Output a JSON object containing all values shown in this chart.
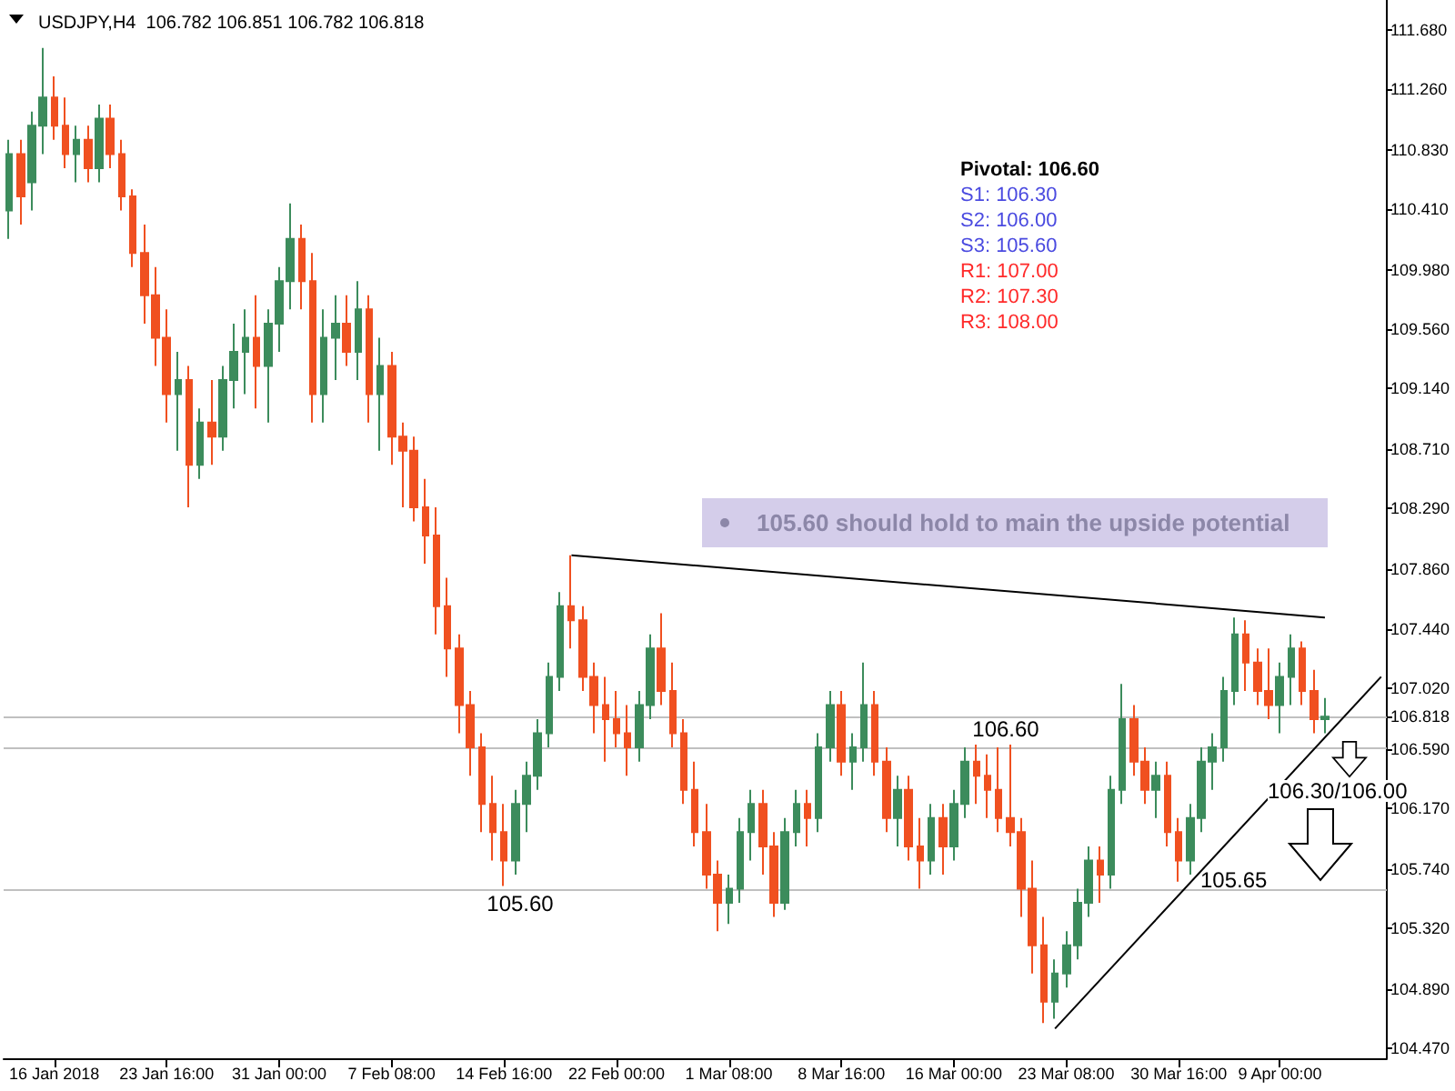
{
  "chart_data": {
    "type": "candlestick",
    "title": "USDJPY,H4  106.782 106.851 106.782 106.818",
    "categories": [
      null,
      null,
      null,
      null,
      "16 Jan 2018",
      null,
      null,
      null,
      null,
      null,
      null,
      null,
      null,
      null,
      "23 Jan 16:00",
      null,
      null,
      null,
      null,
      null,
      null,
      null,
      null,
      null,
      "31 Jan 00:00",
      null,
      null,
      null,
      null,
      null,
      null,
      null,
      null,
      null,
      "7 Feb 08:00",
      null,
      null,
      null,
      null,
      null,
      null,
      null,
      null,
      null,
      "14 Feb 16:00",
      null,
      null,
      null,
      null,
      null,
      null,
      null,
      null,
      null,
      "22 Feb 00:00",
      null,
      null,
      null,
      null,
      null,
      null,
      null,
      null,
      null,
      "1 Mar 08:00",
      null,
      null,
      null,
      null,
      null,
      null,
      null,
      null,
      null,
      "8 Mar 16:00",
      null,
      null,
      null,
      null,
      null,
      null,
      null,
      null,
      null,
      "16 Mar 00:00",
      null,
      null,
      null,
      null,
      null,
      null,
      null,
      null,
      null,
      "23 Mar 08:00",
      null,
      null,
      null,
      null,
      null,
      null,
      null,
      null,
      null,
      "30 Mar 16:00",
      null,
      null,
      null,
      null,
      null,
      null,
      null,
      null,
      "9 Apr 00:00",
      null,
      null,
      null,
      null,
      null,
      null,
      null,
      null,
      null
    ],
    "ohlc": [
      [
        110.4,
        110.9,
        110.2,
        110.8
      ],
      [
        110.8,
        110.9,
        110.3,
        110.5
      ],
      [
        110.6,
        111.1,
        110.4,
        111.0
      ],
      [
        111.0,
        111.55,
        110.8,
        111.2
      ],
      [
        111.2,
        111.35,
        110.9,
        111.0
      ],
      [
        111.0,
        111.2,
        110.7,
        110.8
      ],
      [
        110.8,
        111.0,
        110.6,
        110.9
      ],
      [
        110.9,
        111.0,
        110.6,
        110.7
      ],
      [
        110.7,
        111.15,
        110.6,
        111.05
      ],
      [
        111.05,
        111.15,
        110.7,
        110.8
      ],
      [
        110.8,
        110.9,
        110.4,
        110.5
      ],
      [
        110.5,
        110.55,
        110.0,
        110.1
      ],
      [
        110.1,
        110.3,
        109.6,
        109.8
      ],
      [
        109.8,
        110.0,
        109.3,
        109.5
      ],
      [
        109.5,
        109.7,
        108.9,
        109.1
      ],
      [
        109.1,
        109.4,
        108.7,
        109.2
      ],
      [
        109.2,
        109.3,
        108.3,
        108.6
      ],
      [
        108.6,
        109.0,
        108.5,
        108.9
      ],
      [
        108.9,
        109.2,
        108.6,
        108.8
      ],
      [
        108.8,
        109.3,
        108.7,
        109.2
      ],
      [
        109.2,
        109.6,
        109.0,
        109.4
      ],
      [
        109.4,
        109.7,
        109.1,
        109.5
      ],
      [
        109.5,
        109.8,
        109.0,
        109.3
      ],
      [
        109.3,
        109.7,
        108.9,
        109.6
      ],
      [
        109.6,
        110.0,
        109.4,
        109.9
      ],
      [
        109.9,
        110.45,
        109.7,
        110.2
      ],
      [
        110.2,
        110.3,
        109.7,
        109.9
      ],
      [
        109.9,
        110.1,
        108.9,
        109.1
      ],
      [
        109.1,
        109.7,
        108.9,
        109.5
      ],
      [
        109.5,
        109.8,
        109.2,
        109.6
      ],
      [
        109.6,
        109.8,
        109.3,
        109.4
      ],
      [
        109.4,
        109.9,
        109.2,
        109.7
      ],
      [
        109.7,
        109.8,
        108.9,
        109.1
      ],
      [
        109.1,
        109.5,
        108.7,
        109.3
      ],
      [
        109.3,
        109.4,
        108.6,
        108.8
      ],
      [
        108.8,
        108.9,
        108.3,
        108.7
      ],
      [
        108.7,
        108.8,
        108.2,
        108.3
      ],
      [
        108.3,
        108.5,
        107.9,
        108.1
      ],
      [
        108.1,
        108.3,
        107.4,
        107.6
      ],
      [
        107.6,
        107.8,
        107.1,
        107.3
      ],
      [
        107.3,
        107.4,
        106.7,
        106.9
      ],
      [
        106.9,
        107.0,
        106.4,
        106.6
      ],
      [
        106.6,
        106.7,
        106.0,
        106.2
      ],
      [
        106.2,
        106.4,
        105.8,
        106.0
      ],
      [
        106.0,
        106.2,
        105.62,
        105.8
      ],
      [
        105.8,
        106.3,
        105.7,
        106.2
      ],
      [
        106.2,
        106.5,
        106.0,
        106.4
      ],
      [
        106.4,
        106.8,
        106.3,
        106.7
      ],
      [
        106.7,
        107.2,
        106.6,
        107.1
      ],
      [
        107.1,
        107.7,
        107.0,
        107.6
      ],
      [
        107.6,
        107.96,
        107.3,
        107.5
      ],
      [
        107.5,
        107.6,
        107.0,
        107.1
      ],
      [
        107.1,
        107.2,
        106.7,
        106.9
      ],
      [
        106.9,
        107.1,
        106.5,
        106.8
      ],
      [
        106.8,
        107.0,
        106.6,
        106.7
      ],
      [
        106.7,
        106.9,
        106.4,
        106.6
      ],
      [
        106.6,
        107.0,
        106.5,
        106.9
      ],
      [
        106.9,
        107.4,
        106.8,
        107.3
      ],
      [
        107.3,
        107.55,
        106.9,
        107.0
      ],
      [
        107.0,
        107.2,
        106.6,
        106.7
      ],
      [
        106.7,
        106.8,
        106.2,
        106.3
      ],
      [
        106.3,
        106.5,
        105.9,
        106.0
      ],
      [
        106.0,
        106.2,
        105.6,
        105.7
      ],
      [
        105.7,
        105.8,
        105.3,
        105.5
      ],
      [
        105.5,
        105.7,
        105.35,
        105.6
      ],
      [
        105.6,
        106.1,
        105.5,
        106.0
      ],
      [
        106.0,
        106.3,
        105.8,
        106.2
      ],
      [
        106.2,
        106.3,
        105.7,
        105.9
      ],
      [
        105.9,
        106.0,
        105.4,
        105.5
      ],
      [
        105.5,
        106.1,
        105.45,
        106.0
      ],
      [
        106.0,
        106.3,
        105.9,
        106.2
      ],
      [
        106.2,
        106.3,
        105.9,
        106.1
      ],
      [
        106.1,
        106.7,
        106.0,
        106.6
      ],
      [
        106.6,
        107.0,
        106.5,
        106.9
      ],
      [
        106.9,
        107.0,
        106.4,
        106.5
      ],
      [
        106.5,
        106.7,
        106.3,
        106.6
      ],
      [
        106.6,
        107.2,
        106.5,
        106.9
      ],
      [
        106.9,
        107.0,
        106.4,
        106.5
      ],
      [
        106.5,
        106.6,
        106.0,
        106.1
      ],
      [
        106.1,
        106.4,
        105.9,
        106.3
      ],
      [
        106.3,
        106.4,
        105.8,
        105.9
      ],
      [
        105.9,
        106.1,
        105.6,
        105.8
      ],
      [
        105.8,
        106.2,
        105.7,
        106.1
      ],
      [
        106.1,
        106.2,
        105.7,
        105.9
      ],
      [
        105.9,
        106.3,
        105.8,
        106.2
      ],
      [
        106.2,
        106.6,
        106.1,
        106.5
      ],
      [
        106.5,
        106.62,
        106.2,
        106.4
      ],
      [
        106.4,
        106.55,
        106.1,
        106.3
      ],
      [
        106.3,
        106.6,
        106.0,
        106.1
      ],
      [
        106.1,
        106.62,
        105.9,
        106.0
      ],
      [
        106.0,
        106.1,
        105.4,
        105.6
      ],
      [
        105.6,
        105.8,
        105.0,
        105.2
      ],
      [
        105.2,
        105.4,
        104.65,
        104.8
      ],
      [
        104.8,
        105.1,
        104.68,
        105.0
      ],
      [
        105.0,
        105.3,
        104.9,
        105.2
      ],
      [
        105.2,
        105.6,
        105.1,
        105.5
      ],
      [
        105.5,
        105.9,
        105.4,
        105.8
      ],
      [
        105.8,
        105.9,
        105.5,
        105.7
      ],
      [
        105.7,
        106.4,
        105.6,
        106.3
      ],
      [
        106.3,
        107.05,
        106.2,
        106.8
      ],
      [
        106.8,
        106.9,
        106.4,
        106.5
      ],
      [
        106.5,
        106.6,
        106.2,
        106.3
      ],
      [
        106.3,
        106.5,
        106.1,
        106.4
      ],
      [
        106.4,
        106.5,
        105.9,
        106.0
      ],
      [
        106.0,
        106.1,
        105.65,
        105.8
      ],
      [
        105.8,
        106.2,
        105.7,
        106.1
      ],
      [
        106.1,
        106.6,
        106.0,
        106.5
      ],
      [
        106.5,
        106.7,
        106.3,
        106.6
      ],
      [
        106.6,
        107.1,
        106.5,
        107.0
      ],
      [
        107.0,
        107.52,
        106.9,
        107.4
      ],
      [
        107.4,
        107.5,
        107.0,
        107.2
      ],
      [
        107.2,
        107.3,
        106.9,
        107.0
      ],
      [
        107.0,
        107.3,
        106.8,
        106.9
      ],
      [
        106.9,
        107.2,
        106.7,
        107.1
      ],
      [
        107.1,
        107.4,
        106.9,
        107.3
      ],
      [
        107.3,
        107.35,
        106.9,
        107.0
      ],
      [
        107.0,
        107.15,
        106.7,
        106.8
      ],
      [
        106.8,
        106.95,
        106.7,
        106.818
      ],
      null,
      null,
      null,
      null,
      null
    ],
    "colors": [
      "#3c8c5c",
      "#f05020",
      "#3c8c5c",
      "#3c8c5c",
      "#f05020",
      "#f05020",
      "#3c8c5c",
      "#f05020",
      "#3c8c5c",
      "#f05020",
      "#f05020",
      "#f05020",
      "#f05020",
      "#f05020",
      "#f05020",
      "#3c8c5c",
      "#f05020",
      "#3c8c5c",
      "#f05020",
      "#3c8c5c",
      "#3c8c5c",
      "#3c8c5c",
      "#f05020",
      "#3c8c5c",
      "#3c8c5c",
      "#3c8c5c",
      "#f05020",
      "#f05020",
      "#3c8c5c",
      "#3c8c5c",
      "#f05020",
      "#3c8c5c",
      "#f05020",
      "#3c8c5c",
      "#f05020",
      "#f05020",
      "#f05020",
      "#f05020",
      "#f05020",
      "#f05020",
      "#f05020",
      "#f05020",
      "#f05020",
      "#f05020",
      "#f05020",
      "#3c8c5c",
      "#3c8c5c",
      "#3c8c5c",
      "#3c8c5c",
      "#3c8c5c",
      "#f05020",
      "#f05020",
      "#f05020",
      "#f05020",
      "#f05020",
      "#f05020",
      "#3c8c5c",
      "#3c8c5c",
      "#f05020",
      "#f05020",
      "#f05020",
      "#f05020",
      "#f05020",
      "#f05020",
      "#3c8c5c",
      "#3c8c5c",
      "#3c8c5c",
      "#f05020",
      "#f05020",
      "#3c8c5c",
      "#3c8c5c",
      "#f05020",
      "#3c8c5c",
      "#3c8c5c",
      "#f05020",
      "#3c8c5c",
      "#3c8c5c",
      "#f05020",
      "#f05020",
      "#3c8c5c",
      "#f05020",
      "#f05020",
      "#3c8c5c",
      "#f05020",
      "#3c8c5c",
      "#3c8c5c",
      "#f05020",
      "#f05020",
      "#f05020",
      "#f05020",
      "#f05020",
      "#f05020",
      "#f05020",
      "#3c8c5c",
      "#3c8c5c",
      "#3c8c5c",
      "#3c8c5c",
      "#f05020",
      "#3c8c5c",
      "#3c8c5c",
      "#f05020",
      "#f05020",
      "#3c8c5c",
      "#f05020",
      "#f05020",
      "#3c8c5c",
      "#3c8c5c",
      "#3c8c5c",
      "#3c8c5c",
      "#3c8c5c",
      "#f05020",
      "#f05020",
      "#f05020",
      "#3c8c5c",
      "#3c8c5c",
      "#f05020",
      "#f05020",
      "#3c8c5c",
      null,
      null,
      null,
      null,
      null
    ],
    "series": [
      {
        "type": "line",
        "color": "#000000",
        "values": [
          null,
          null,
          null,
          null,
          null,
          null,
          null,
          null,
          null,
          null,
          null,
          null,
          null,
          null,
          null,
          null,
          null,
          null,
          null,
          null,
          null,
          null,
          null,
          null,
          null,
          null,
          null,
          null,
          null,
          null,
          null,
          null,
          null,
          null,
          null,
          null,
          null,
          null,
          null,
          null,
          null,
          null,
          null,
          null,
          null,
          null,
          null,
          null,
          null,
          null,
          107.96,
          null,
          null,
          null,
          null,
          null,
          null,
          null,
          null,
          null,
          null,
          null,
          null,
          null,
          null,
          null,
          null,
          null,
          null,
          null,
          null,
          null,
          null,
          null,
          null,
          null,
          null,
          null,
          null,
          null,
          null,
          null,
          null,
          null,
          null,
          null,
          null,
          null,
          null,
          null,
          null,
          null,
          null,
          null,
          null,
          null,
          null,
          null,
          null,
          null,
          null,
          null,
          null,
          null,
          null,
          null,
          null,
          null,
          null,
          null,
          null,
          null,
          null,
          null,
          null,
          null,
          null,
          107.52,
          null,
          null,
          null,
          null,
          null
        ]
      },
      {
        "type": "line",
        "color": "#000000",
        "values": [
          null,
          null,
          null,
          null,
          null,
          null,
          null,
          null,
          null,
          null,
          null,
          null,
          null,
          null,
          null,
          null,
          null,
          null,
          null,
          null,
          null,
          null,
          null,
          null,
          null,
          null,
          null,
          null,
          null,
          null,
          null,
          null,
          null,
          null,
          null,
          null,
          null,
          null,
          null,
          null,
          null,
          null,
          null,
          null,
          null,
          null,
          null,
          null,
          null,
          null,
          null,
          null,
          null,
          null,
          null,
          null,
          null,
          null,
          null,
          null,
          null,
          null,
          null,
          null,
          null,
          null,
          null,
          null,
          null,
          null,
          null,
          null,
          null,
          null,
          null,
          null,
          null,
          null,
          null,
          null,
          null,
          null,
          null,
          null,
          null,
          null,
          null,
          null,
          null,
          null,
          null,
          null,
          null,
          104.61,
          null,
          null,
          null,
          null,
          null,
          null,
          null,
          null,
          null,
          null,
          null,
          null,
          null,
          null,
          null,
          null,
          null,
          null,
          null,
          null,
          null,
          null,
          null,
          null,
          null,
          null,
          null,
          null,
          107.1
        ]
      }
    ],
    "marker": "none",
    "ylim": [
      104.4,
      111.89
    ],
    "yticks": [
      {
        "value": 104.47,
        "label": "104.470"
      },
      {
        "value": 104.89,
        "label": "104.890"
      },
      {
        "value": 105.32,
        "label": "105.320"
      },
      {
        "value": 105.74,
        "label": "105.740"
      },
      {
        "value": 106.17,
        "label": "106.170"
      },
      {
        "value": 106.59,
        "label": "106.590"
      },
      {
        "value": 106.818,
        "label": "106.818"
      },
      {
        "value": 107.02,
        "label": "107.020"
      },
      {
        "value": 107.44,
        "label": "107.440"
      },
      {
        "value": 107.86,
        "label": "107.860"
      },
      {
        "value": 108.29,
        "label": "108.290"
      },
      {
        "value": 108.71,
        "label": "108.710"
      },
      {
        "value": 109.14,
        "label": "109.140"
      },
      {
        "value": 109.56,
        "label": "109.560"
      },
      {
        "value": 109.98,
        "label": "109.980"
      },
      {
        "value": 110.41,
        "label": "110.410"
      },
      {
        "value": 110.83,
        "label": "110.830"
      },
      {
        "value": 111.26,
        "label": "111.260"
      },
      {
        "value": 111.68,
        "label": "111.680"
      }
    ],
    "ref_lines": [
      {
        "axis": "y",
        "value": 106.6,
        "label": "106.60",
        "color": "#c0c0c0"
      },
      {
        "axis": "y",
        "value": 105.6,
        "label": "105.60",
        "color": "#c0c0c0"
      },
      {
        "axis": "y",
        "value": 106.818,
        "color": "#c0c0c0"
      }
    ],
    "annotations": [
      "Pivotal: 106.60",
      "S1: 106.30",
      "S2: 106.00",
      "S3: 105.60",
      "R1: 107.00",
      "R2: 107.30",
      "R3: 108.00",
      "105.60 should hold to main the upside potential",
      "106.30/106.00",
      "105.65"
    ],
    "grid": false
  }
}
